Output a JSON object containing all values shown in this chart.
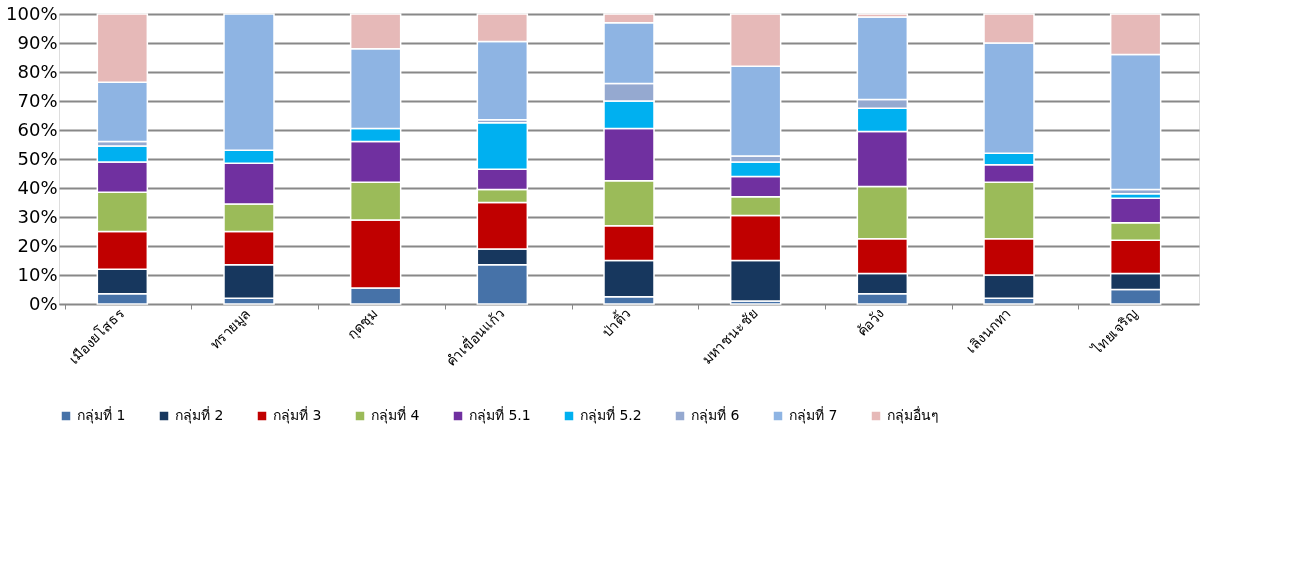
{
  "chart_data": {
    "type": "bar",
    "stacked": true,
    "categories": [
      "เมืองยโสธร",
      "ทรายมูล",
      "กุดชุม",
      "คำเขื่อนแก้ว",
      "ป่าติ้ว",
      "มหาชนะชัย",
      "ค้อวัง",
      "เลิงนกทา",
      "ไทยเจริญ"
    ],
    "series": [
      {
        "name": "กลุ่มที่ 1",
        "color": "#4672a8",
        "values": [
          3.5,
          2,
          5.5,
          13.5,
          2.5,
          1,
          3.5,
          2,
          5
        ]
      },
      {
        "name": "กลุ่มที่ 2",
        "color": "#17375e",
        "values": [
          8.5,
          11.5,
          null,
          5.5,
          12.5,
          14,
          7,
          8,
          5.5
        ]
      },
      {
        "name": "กลุ่มที่ 3",
        "color": "#c00000",
        "values": [
          13,
          11.5,
          23.5,
          16,
          12,
          15.5,
          12,
          12.5,
          11.5
        ]
      },
      {
        "name": "กลุ่มที่ 4",
        "color": "#9bbb59",
        "values": [
          13.5,
          9.5,
          13,
          4.5,
          15.5,
          6.5,
          18,
          19.5,
          6
        ]
      },
      {
        "name": "กลุ่มที่ 5.1",
        "color": "#7030a0",
        "values": [
          10.5,
          14,
          14,
          7,
          18,
          7,
          19,
          6,
          8.5
        ]
      },
      {
        "name": "กลุ่มที่ 5.2",
        "color": "#00b0f0",
        "values": [
          5.5,
          4.5,
          4.5,
          16,
          9.5,
          5,
          8,
          4,
          1.5
        ]
      },
      {
        "name": "กลุ่มที่ 6",
        "color": "#95a9d0",
        "values": [
          1.5,
          null,
          null,
          1,
          6,
          2,
          3,
          null,
          1.5
        ]
      },
      {
        "name": "กลุ่มที่ 7",
        "color": "#8eb4e3",
        "values": [
          20.5,
          47,
          27.5,
          27,
          21,
          31,
          28.5,
          38,
          46.5
        ]
      },
      {
        "name": "กลุ่มอื่นๆ",
        "color": "#e6b9b8",
        "values": [
          23.5,
          null,
          12,
          9.5,
          3,
          18,
          1,
          10,
          14
        ]
      }
    ],
    "ylim": [
      0,
      100
    ],
    "yticks": [
      {
        "value": 0,
        "label": "0%"
      },
      {
        "value": 10,
        "label": "10%"
      },
      {
        "value": 20,
        "label": "20%"
      },
      {
        "value": 30,
        "label": "30%"
      },
      {
        "value": 40,
        "label": "40%"
      },
      {
        "value": 50,
        "label": "50%"
      },
      {
        "value": 60,
        "label": "60%"
      },
      {
        "value": 70,
        "label": "70%"
      },
      {
        "value": 80,
        "label": "80%"
      },
      {
        "value": 90,
        "label": "90%"
      },
      {
        "value": 100,
        "label": "100%"
      }
    ],
    "grid": "y",
    "legend": "bottom"
  }
}
